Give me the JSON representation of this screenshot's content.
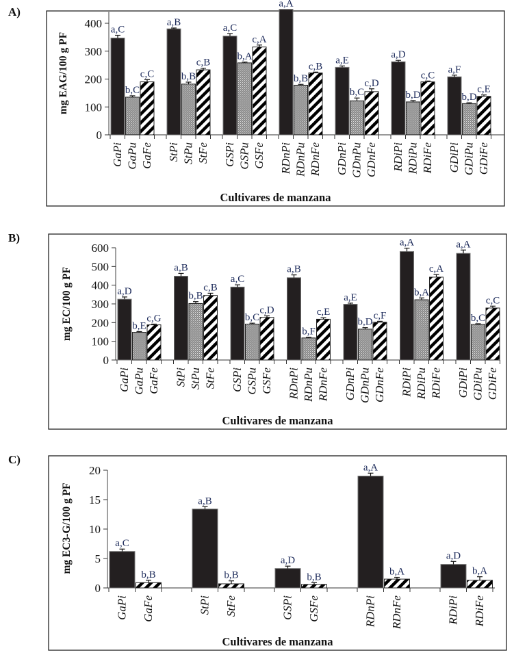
{
  "figure": {
    "panels": [
      "A)",
      "B)",
      "C)"
    ]
  },
  "chart_data": [
    {
      "type": "bar",
      "panel": "A)",
      "title": "",
      "xlabel": "Cultivares de manzana",
      "ylabel": "mg EAG/100 g PF",
      "ylim": [
        0,
        450
      ],
      "yticks": [
        0,
        100,
        200,
        300,
        400
      ],
      "grid": false,
      "legend": "none",
      "groups": [
        {
          "bars": [
            {
              "label": "GaPi",
              "pattern": "solid",
              "value": 347,
              "err": 10,
              "annotation": "a,C"
            },
            {
              "label": "GaPu",
              "pattern": "dots",
              "value": 135,
              "err": 5,
              "annotation": "b,C"
            },
            {
              "label": "GaFe",
              "pattern": "stripes",
              "value": 190,
              "err": 8,
              "annotation": "c,C"
            }
          ]
        },
        {
          "bars": [
            {
              "label": "StPi",
              "pattern": "solid",
              "value": 380,
              "err": 3,
              "annotation": "a,B"
            },
            {
              "label": "StPu",
              "pattern": "dots",
              "value": 182,
              "err": 7,
              "annotation": "b,B"
            },
            {
              "label": "StFe",
              "pattern": "stripes",
              "value": 233,
              "err": 6,
              "annotation": "c,B"
            }
          ]
        },
        {
          "bars": [
            {
              "label": "GSPi",
              "pattern": "solid",
              "value": 354,
              "err": 9,
              "annotation": "a,C"
            },
            {
              "label": "GSPu",
              "pattern": "dots",
              "value": 258,
              "err": 3,
              "annotation": "b,A"
            },
            {
              "label": "GSFe",
              "pattern": "stripes",
              "value": 315,
              "err": 7,
              "annotation": "c,A"
            }
          ]
        },
        {
          "bars": [
            {
              "label": "RDnPi",
              "pattern": "solid",
              "value": 450,
              "err": 0,
              "annotation": "a,A"
            },
            {
              "label": "RDnPu",
              "pattern": "dots",
              "value": 178,
              "err": 3,
              "annotation": "b,B"
            },
            {
              "label": "RDnFe",
              "pattern": "stripes",
              "value": 222,
              "err": 3,
              "annotation": "c,B"
            }
          ]
        },
        {
          "bars": [
            {
              "label": "GDnPi",
              "pattern": "solid",
              "value": 242,
              "err": 5,
              "annotation": "a,E"
            },
            {
              "label": "GDnPu",
              "pattern": "dots",
              "value": 122,
              "err": 10,
              "annotation": "b,C"
            },
            {
              "label": "GDnFe",
              "pattern": "stripes",
              "value": 155,
              "err": 10,
              "annotation": "c,D"
            }
          ]
        },
        {
          "bars": [
            {
              "label": "RDiPi",
              "pattern": "solid",
              "value": 262,
              "err": 5,
              "annotation": "a,D"
            },
            {
              "label": "RDiPu",
              "pattern": "dots",
              "value": 118,
              "err": 5,
              "annotation": "b,D"
            },
            {
              "label": "RDiFe",
              "pattern": "stripes",
              "value": 190,
              "err": 3,
              "annotation": "c,C"
            }
          ]
        },
        {
          "bars": [
            {
              "label": "GDiPi",
              "pattern": "solid",
              "value": 208,
              "err": 6,
              "annotation": "a,F"
            },
            {
              "label": "GDiPu",
              "pattern": "dots",
              "value": 112,
              "err": 3,
              "annotation": "b,D"
            },
            {
              "label": "GDiFe",
              "pattern": "stripes",
              "value": 138,
              "err": 5,
              "annotation": "c,E"
            }
          ]
        }
      ]
    },
    {
      "type": "bar",
      "panel": "B)",
      "title": "",
      "xlabel": "Cultivares de manzana",
      "ylabel": "mg EC/100 g PF",
      "ylim": [
        0,
        600
      ],
      "yticks": [
        0,
        100,
        200,
        300,
        400,
        500,
        600
      ],
      "grid": false,
      "legend": "none",
      "groups": [
        {
          "bars": [
            {
              "label": "GaPi",
              "pattern": "solid",
              "value": 325,
              "err": 12,
              "annotation": "a,D"
            },
            {
              "label": "GaPu",
              "pattern": "dots",
              "value": 148,
              "err": 4,
              "annotation": "b,E"
            },
            {
              "label": "GaFe",
              "pattern": "stripes",
              "value": 188,
              "err": 4,
              "annotation": "c,G"
            }
          ]
        },
        {
          "bars": [
            {
              "label": "StPi",
              "pattern": "solid",
              "value": 448,
              "err": 15,
              "annotation": "a,B"
            },
            {
              "label": "StPu",
              "pattern": "dots",
              "value": 302,
              "err": 10,
              "annotation": "b,B"
            },
            {
              "label": "StFe",
              "pattern": "stripes",
              "value": 345,
              "err": 12,
              "annotation": "c,B"
            }
          ]
        },
        {
          "bars": [
            {
              "label": "GSPi",
              "pattern": "solid",
              "value": 390,
              "err": 12,
              "annotation": "a,C"
            },
            {
              "label": "GSPu",
              "pattern": "dots",
              "value": 192,
              "err": 5,
              "annotation": "b,C"
            },
            {
              "label": "GSFe",
              "pattern": "stripes",
              "value": 228,
              "err": 8,
              "annotation": "c,D"
            }
          ]
        },
        {
          "bars": [
            {
              "label": "RDnPi",
              "pattern": "solid",
              "value": 440,
              "err": 15,
              "annotation": "a,B"
            },
            {
              "label": "RDnPu",
              "pattern": "dots",
              "value": 118,
              "err": 4,
              "annotation": "b,F"
            },
            {
              "label": "RDnFe",
              "pattern": "stripes",
              "value": 218,
              "err": 8,
              "annotation": "c,E"
            }
          ]
        },
        {
          "bars": [
            {
              "label": "GDnPi",
              "pattern": "solid",
              "value": 298,
              "err": 6,
              "annotation": "a,E"
            },
            {
              "label": "GDnPu",
              "pattern": "dots",
              "value": 165,
              "err": 8,
              "annotation": "b,D"
            },
            {
              "label": "GDnFe",
              "pattern": "stripes",
              "value": 202,
              "err": 5,
              "annotation": "c,F"
            }
          ]
        },
        {
          "bars": [
            {
              "label": "RDiPi",
              "pattern": "solid",
              "value": 580,
              "err": 18,
              "annotation": "a,A"
            },
            {
              "label": "RDiPu",
              "pattern": "dots",
              "value": 322,
              "err": 10,
              "annotation": "b,A"
            },
            {
              "label": "RDiFe",
              "pattern": "stripes",
              "value": 443,
              "err": 14,
              "annotation": "c,A"
            }
          ]
        },
        {
          "bars": [
            {
              "label": "GDiPi",
              "pattern": "solid",
              "value": 570,
              "err": 18,
              "annotation": "a,A"
            },
            {
              "label": "GDiPu",
              "pattern": "dots",
              "value": 190,
              "err": 4,
              "annotation": "b,C"
            },
            {
              "label": "GDiFe",
              "pattern": "stripes",
              "value": 278,
              "err": 10,
              "annotation": "c,C"
            }
          ]
        }
      ]
    },
    {
      "type": "bar",
      "panel": "C)",
      "title": "",
      "xlabel": "Cultivares de manzana",
      "ylabel": "mg EC3-G/100 g PF",
      "ylim": [
        0,
        20
      ],
      "yticks": [
        0,
        5,
        10,
        15,
        20
      ],
      "grid": false,
      "legend": "none",
      "groups": [
        {
          "bars": [
            {
              "label": "GaPi",
              "pattern": "solid",
              "value": 6.2,
              "err": 0.4,
              "annotation": "a,C"
            },
            {
              "label": "GaFe",
              "pattern": "stripes",
              "value": 0.9,
              "err": 0.4,
              "annotation": "b,B"
            }
          ]
        },
        {
          "bars": [
            {
              "label": "StPi",
              "pattern": "solid",
              "value": 13.4,
              "err": 0.4,
              "annotation": "a,B"
            },
            {
              "label": "StFe",
              "pattern": "stripes",
              "value": 0.7,
              "err": 0.5,
              "annotation": "b,B"
            }
          ]
        },
        {
          "bars": [
            {
              "label": "GSPi",
              "pattern": "solid",
              "value": 3.3,
              "err": 0.4,
              "annotation": "a,D"
            },
            {
              "label": "GSFe",
              "pattern": "stripes",
              "value": 0.6,
              "err": 0.3,
              "annotation": "b,B"
            }
          ]
        },
        {
          "bars": [
            {
              "label": "RDnPi",
              "pattern": "solid",
              "value": 19.0,
              "err": 0.5,
              "annotation": "a,A"
            },
            {
              "label": "RDnFe",
              "pattern": "stripes",
              "value": 1.5,
              "err": 0.3,
              "annotation": "b,A"
            }
          ]
        },
        {
          "bars": [
            {
              "label": "RDiPi",
              "pattern": "solid",
              "value": 4.0,
              "err": 0.5,
              "annotation": "a,D"
            },
            {
              "label": "RDiFe",
              "pattern": "stripes",
              "value": 1.3,
              "err": 0.6,
              "annotation": "b,A"
            }
          ]
        }
      ]
    }
  ],
  "colors": {
    "solid": "#231f20",
    "dots_bg": "#8a8a8a",
    "dots_fg": "#d8d8d8",
    "stripes_fg": "#000000",
    "stripes_bg": "#ffffff",
    "annotation": "#1c2a5a"
  }
}
